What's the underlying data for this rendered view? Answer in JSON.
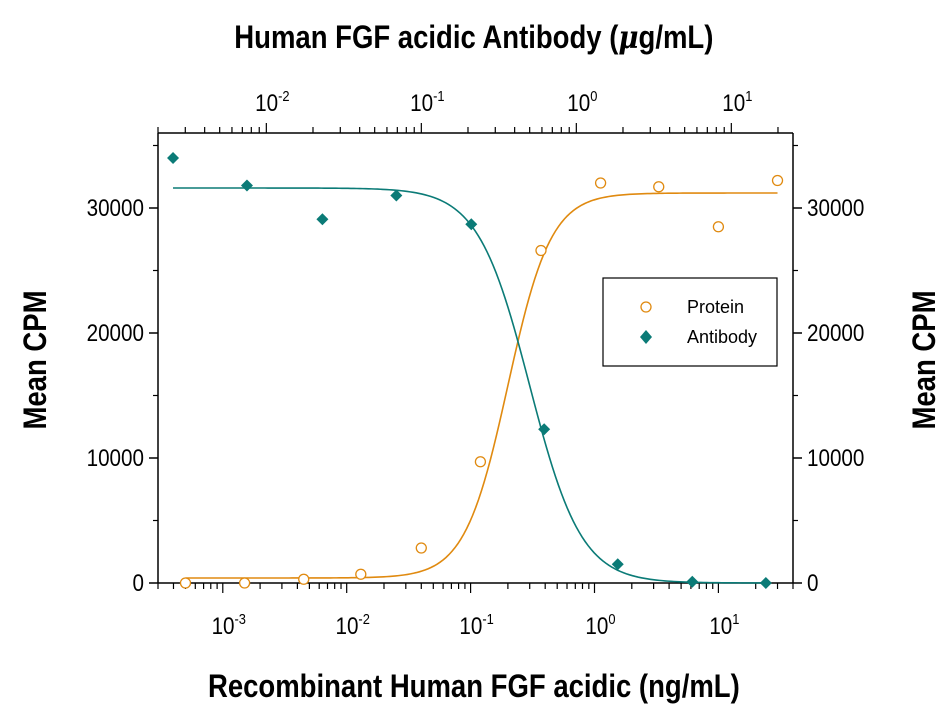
{
  "chart_data": {
    "type": "scatter",
    "top_title": "Human FGF acidic Antibody (",
    "top_title_mu": "μ",
    "top_title_end": "g/mL)",
    "xlabel": "Recombinant Human FGF acidic (ng/mL)",
    "ylabel_left": "Mean CPM",
    "ylabel_right": "Mean CPM",
    "x_scale": "log",
    "xlim": [
      0.0003,
      40
    ],
    "top_x_scale": "log",
    "top_xlim": [
      0.002,
      25
    ],
    "ylim": [
      0,
      36000
    ],
    "y_ticks": [
      0,
      10000,
      20000,
      30000
    ],
    "x_ticks": [
      {
        "base": "10",
        "exp": "-3",
        "value": 0.001
      },
      {
        "base": "10",
        "exp": "-2",
        "value": 0.01
      },
      {
        "base": "10",
        "exp": "-1",
        "value": 0.1
      },
      {
        "base": "10",
        "exp": "0",
        "value": 1
      },
      {
        "base": "10",
        "exp": "1",
        "value": 10
      }
    ],
    "top_x_ticks": [
      {
        "base": "10",
        "exp": "-2",
        "value": 0.01
      },
      {
        "base": "10",
        "exp": "-1",
        "value": 0.1
      },
      {
        "base": "10",
        "exp": "0",
        "value": 1
      },
      {
        "base": "10",
        "exp": "1",
        "value": 10
      }
    ],
    "legend": {
      "placement": "center-right",
      "entries": [
        "Protein",
        "Antibody"
      ]
    },
    "colors": {
      "protein": "#e08a10",
      "antibody": "#0b7b77"
    },
    "series": [
      {
        "name": "Protein",
        "axis": "bottom",
        "marker": "open-circle",
        "x": [
          0.0005,
          0.0015,
          0.0045,
          0.013,
          0.04,
          0.12,
          0.37,
          1.12,
          3.3,
          10,
          30
        ],
        "y": [
          0,
          0,
          300,
          700,
          2800,
          9700,
          26600,
          32000,
          31700,
          28500,
          32200
        ],
        "fit": {
          "bottom": 400,
          "top": 31200,
          "ec50": 0.2,
          "hill": 2.5
        }
      },
      {
        "name": "Antibody",
        "axis": "top",
        "marker": "filled-diamond",
        "x": [
          0.0025,
          0.0075,
          0.023,
          0.069,
          0.21,
          0.62,
          1.85,
          5.6,
          16.7
        ],
        "y": [
          34000,
          31800,
          29100,
          31000,
          28700,
          12300,
          1500,
          100,
          0
        ],
        "fit": {
          "bottom": 0,
          "top": 31600,
          "ec50": 0.5,
          "hill": 2.6
        }
      }
    ]
  }
}
